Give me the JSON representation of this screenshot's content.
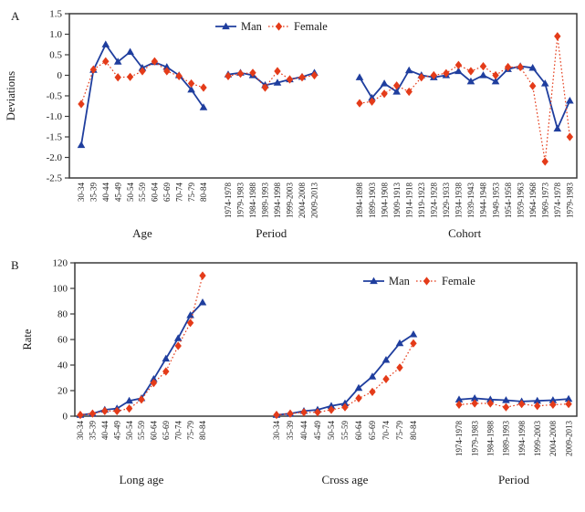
{
  "colors": {
    "man": "#1f3e9e",
    "female": "#e43b19",
    "axis": "#3a3a3a",
    "text": "#1a1a1a"
  },
  "legend": {
    "man_label": "Man",
    "female_label": "Female"
  },
  "chart_data": [
    {
      "type": "line",
      "panel_letter": "A",
      "ylabel": "Deviations",
      "ylim": [
        -2.5,
        1.5
      ],
      "yticks": [
        "1.5",
        "1.0",
        "0.5",
        "0",
        "-0.5",
        "-1.0",
        "-1.5",
        "-2.0",
        "-2.5"
      ],
      "grid": false,
      "legend_entries": [
        "Man",
        "Female"
      ],
      "legend_position": "top-center-inside",
      "groups": [
        {
          "label": "Age",
          "categories": [
            "30-34",
            "35-39",
            "40-44",
            "45-49",
            "50-54",
            "55-59",
            "60-64",
            "65-69",
            "70-74",
            "75-79",
            "80-84"
          ],
          "series": [
            {
              "name": "Man",
              "values": [
                -1.7,
                0.13,
                0.75,
                0.33,
                0.57,
                0.18,
                0.32,
                0.2,
                0.0,
                -0.35,
                -0.78
              ]
            },
            {
              "name": "Female",
              "values": [
                -0.7,
                0.14,
                0.34,
                -0.05,
                -0.04,
                0.1,
                0.34,
                0.1,
                -0.02,
                -0.2,
                -0.3
              ]
            }
          ]
        },
        {
          "label": "Period",
          "categories": [
            "1974-1978",
            "1979-1983",
            "1984-1988",
            "1989-1993",
            "1994-1998",
            "1999-2003",
            "2004-2008",
            "2009-2013"
          ],
          "series": [
            {
              "name": "Man",
              "values": [
                0.02,
                0.06,
                0.0,
                -0.24,
                -0.18,
                -0.1,
                -0.04,
                0.06
              ]
            },
            {
              "name": "Female",
              "values": [
                -0.02,
                0.04,
                0.06,
                -0.3,
                0.1,
                -0.1,
                -0.05,
                0.0
              ]
            }
          ]
        },
        {
          "label": "Cohort",
          "categories": [
            "1894-1898",
            "1899-1903",
            "1904-1908",
            "1909-1913",
            "1914-1918",
            "1919-1923",
            "1924-1928",
            "1929-1933",
            "1934-1938",
            "1939-1943",
            "1944-1948",
            "1949-1953",
            "1954-1958",
            "1959-1963",
            "1964-1968",
            "1969-1973",
            "1974-1978",
            "1979-1983"
          ],
          "series": [
            {
              "name": "Man",
              "values": [
                -0.05,
                -0.55,
                -0.2,
                -0.4,
                0.12,
                0.0,
                -0.05,
                0.0,
                0.1,
                -0.15,
                0.0,
                -0.15,
                0.15,
                0.22,
                0.18,
                -0.2,
                -1.3,
                -0.62
              ]
            },
            {
              "name": "Female",
              "values": [
                -0.68,
                -0.64,
                -0.45,
                -0.25,
                -0.4,
                -0.05,
                0.0,
                0.05,
                0.25,
                0.1,
                0.22,
                0.0,
                0.2,
                0.2,
                -0.26,
                -2.1,
                0.95,
                -1.5
              ]
            }
          ]
        }
      ]
    },
    {
      "type": "line",
      "panel_letter": "B",
      "ylabel": "Rate",
      "ylim": [
        0,
        120
      ],
      "yticks": [
        "120",
        "100",
        "80",
        "60",
        "40",
        "20",
        "0"
      ],
      "grid": false,
      "legend_entries": [
        "Man",
        "Female"
      ],
      "legend_position": "top-center-inside",
      "groups": [
        {
          "label": "Long age",
          "categories": [
            "30-34",
            "35-39",
            "40-44",
            "45-49",
            "50-54",
            "55-59",
            "60-64",
            "65-69",
            "70-74",
            "75-79",
            "80-84"
          ],
          "series": [
            {
              "name": "Man",
              "values": [
                1,
                2,
                5,
                6,
                12,
                14,
                29,
                45,
                61,
                79,
                89
              ]
            },
            {
              "name": "Female",
              "values": [
                1,
                2,
                4,
                4,
                6,
                13,
                26,
                35,
                55,
                73,
                110
              ]
            }
          ]
        },
        {
          "label": "Cross age",
          "categories": [
            "30-34",
            "35-39",
            "40-44",
            "45-49",
            "50-54",
            "55-59",
            "60-64",
            "65-69",
            "70-74",
            "75-79",
            "80-84"
          ],
          "series": [
            {
              "name": "Man",
              "values": [
                1,
                2,
                4,
                5,
                8,
                10,
                22,
                31,
                44,
                57,
                64
              ]
            },
            {
              "name": "Female",
              "values": [
                1,
                2,
                3,
                3,
                5,
                7,
                14,
                19,
                29,
                38,
                57
              ]
            }
          ]
        },
        {
          "label": "Period",
          "categories": [
            "1974-1978",
            "1979-1983",
            "1984-1988",
            "1989-1993",
            "1994-1998",
            "1999-2003",
            "2004-2008",
            "2009-2013"
          ],
          "series": [
            {
              "name": "Man",
              "values": [
                13,
                14,
                13,
                12.5,
                11.5,
                12,
                12.5,
                13.5
              ]
            },
            {
              "name": "Female",
              "values": [
                9,
                10,
                10,
                7,
                9.5,
                8,
                9,
                9.5
              ]
            }
          ]
        }
      ]
    }
  ]
}
